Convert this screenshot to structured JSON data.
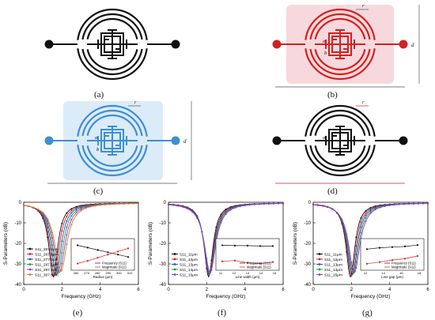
{
  "panels": {
    "a": {
      "label": "(a)"
    },
    "b": {
      "label": "(b)",
      "dims": {
        "d": "d",
        "c": "c",
        "r": "r",
        "a": "a",
        "b": "b"
      }
    },
    "c": {
      "label": "(c)",
      "dims": {
        "d": "d",
        "c": "c",
        "r": "r",
        "a": "a",
        "b": "b"
      }
    },
    "d": {
      "label": "(d)",
      "dims": {
        "c": "c",
        "r": "r",
        "a": "a"
      }
    },
    "e": {
      "label": "(e)"
    },
    "f": {
      "label": "(f)"
    },
    "g": {
      "label": "(g)"
    }
  },
  "colors": {
    "black": "#111111",
    "red": "#d42020",
    "blue": "#3d8fd6",
    "pink": "#f3c9cf",
    "lightblue": "#cde3f5"
  },
  "chart_data": [
    {
      "type": "line",
      "panel": "e",
      "ylabel": "S-Parameters (dB)",
      "xlabel": "Frequency (GHz)",
      "xlim": [
        0,
        6
      ],
      "xticks": [
        "0",
        "2",
        "4",
        "6"
      ],
      "ylim": [
        -40,
        0
      ],
      "yticks": [
        "0",
        "-10",
        "-20",
        "-30",
        "-40"
      ],
      "series_names": [
        "S11_257.5μm",
        "S11_267.5μm",
        "S11_277.5μm",
        "S11_287.5μm",
        "S11_297.5μm",
        "S11_307.5μm"
      ],
      "series_colors": [
        "#111111",
        "#d42020",
        "#1f4fd6",
        "#1f9e2e",
        "#8e3bd6",
        "#e07b1f"
      ],
      "resonance_GHz": [
        1.55,
        1.62,
        1.7,
        1.78,
        1.86,
        1.94
      ],
      "inset": {
        "xlabel": "Radius (μm)",
        "xticks": [
          "260",
          "270",
          "280",
          "290",
          "300",
          "310"
        ],
        "x": [
          257.5,
          267.5,
          277.5,
          287.5,
          297.5,
          307.5
        ],
        "legend": [
          "Frequency (S11)",
          "Magnitude (S11)"
        ],
        "frequency": [
          2.02,
          1.96,
          1.9,
          1.84,
          1.78,
          1.72
        ],
        "magnitude": [
          1.55,
          1.62,
          1.7,
          1.78,
          1.86,
          1.94
        ]
      }
    },
    {
      "type": "line",
      "panel": "f",
      "ylabel": "S-Parameters (dB)",
      "xlabel": "Frequency (GHz)",
      "xlim": [
        0,
        6
      ],
      "xticks": [
        "0",
        "2",
        "4",
        "6"
      ],
      "ylim": [
        -40,
        0
      ],
      "yticks": [
        "0",
        "-10",
        "-20",
        "-30",
        "-40"
      ],
      "series_names": [
        "S11_11μm",
        "S11_12μm",
        "S11_13μm",
        "S11_14μm",
        "S11_15μm"
      ],
      "series_colors": [
        "#111111",
        "#d42020",
        "#1f4fd6",
        "#1f9e2e",
        "#8e3bd6"
      ],
      "resonance_GHz": [
        2.1,
        2.12,
        2.14,
        2.16,
        2.18
      ],
      "inset": {
        "xlabel": "Line width (μm)",
        "xticks": [
          "11",
          "12",
          "13",
          "14",
          "15"
        ],
        "x": [
          11,
          12,
          13,
          14,
          15
        ],
        "legend": [
          "Frequency (S11)",
          "Magnitude (S11)"
        ],
        "frequency": [
          2.14,
          2.13,
          2.13,
          2.12,
          2.12
        ],
        "magnitude": [
          1.72,
          1.74,
          1.68,
          1.66,
          1.7
        ]
      }
    },
    {
      "type": "line",
      "panel": "g",
      "ylabel": "S-Parameters (dB)",
      "xlabel": "Frequency (GHz)",
      "xlim": [
        0,
        6
      ],
      "xticks": [
        "0",
        "2",
        "4",
        "6"
      ],
      "ylim": [
        -40,
        0
      ],
      "yticks": [
        "0",
        "-10",
        "-20",
        "-30",
        "-40"
      ],
      "series_names": [
        "S11_11μm",
        "S11_12μm",
        "S11_13μm",
        "S11_14μm",
        "S11_15μm"
      ],
      "series_colors": [
        "#111111",
        "#d42020",
        "#1f4fd6",
        "#1f9e2e",
        "#8e3bd6"
      ],
      "resonance_GHz": [
        1.95,
        2.0,
        2.05,
        2.1,
        2.15
      ],
      "inset": {
        "xlabel": "Line gap (μm)",
        "xticks": [
          "12",
          "14",
          "16",
          "18"
        ],
        "x": [
          11,
          12,
          13,
          14,
          15
        ],
        "legend": [
          "Frequency (S11)",
          "Magnitude (S11)"
        ],
        "frequency": [
          1.98,
          2.02,
          2.04,
          2.06,
          2.1
        ],
        "magnitude": [
          1.55,
          1.6,
          1.66,
          1.7,
          1.78
        ]
      }
    }
  ]
}
